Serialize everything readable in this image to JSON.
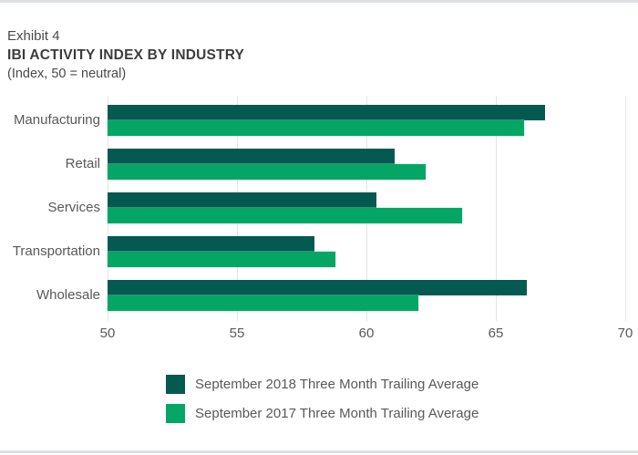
{
  "header": {
    "exhibit": "Exhibit 4",
    "title": "IBI ACTIVITY INDEX BY INDUSTRY",
    "subtitle": "(Index, 50 = neutral)"
  },
  "colors": {
    "series_2018": "#045a50",
    "series_2017": "#04a666",
    "gridline": "#e4e4e4",
    "axis_text": "#595959",
    "title_text": "#3d3d3d",
    "frame_border": "#dde0e2"
  },
  "chart_data": {
    "type": "bar",
    "orientation": "horizontal",
    "title": "IBI ACTIVITY INDEX BY INDUSTRY",
    "subtitle": "(Index, 50 = neutral)",
    "categories": [
      "Manufacturing",
      "Retail",
      "Services",
      "Transportation",
      "Wholesale"
    ],
    "series": [
      {
        "name": "September 2018 Three Month Trailing Average",
        "color": "#045a50",
        "values": [
          66.9,
          61.1,
          60.4,
          58.0,
          66.2
        ]
      },
      {
        "name": "September 2017 Three Month Trailing Average",
        "color": "#04a666",
        "values": [
          66.1,
          62.3,
          63.7,
          58.8,
          62.0
        ]
      }
    ],
    "xlim": [
      50,
      70
    ],
    "xticks": [
      50,
      55,
      60,
      65,
      70
    ],
    "grid": "vertical",
    "legend_position": "bottom"
  }
}
